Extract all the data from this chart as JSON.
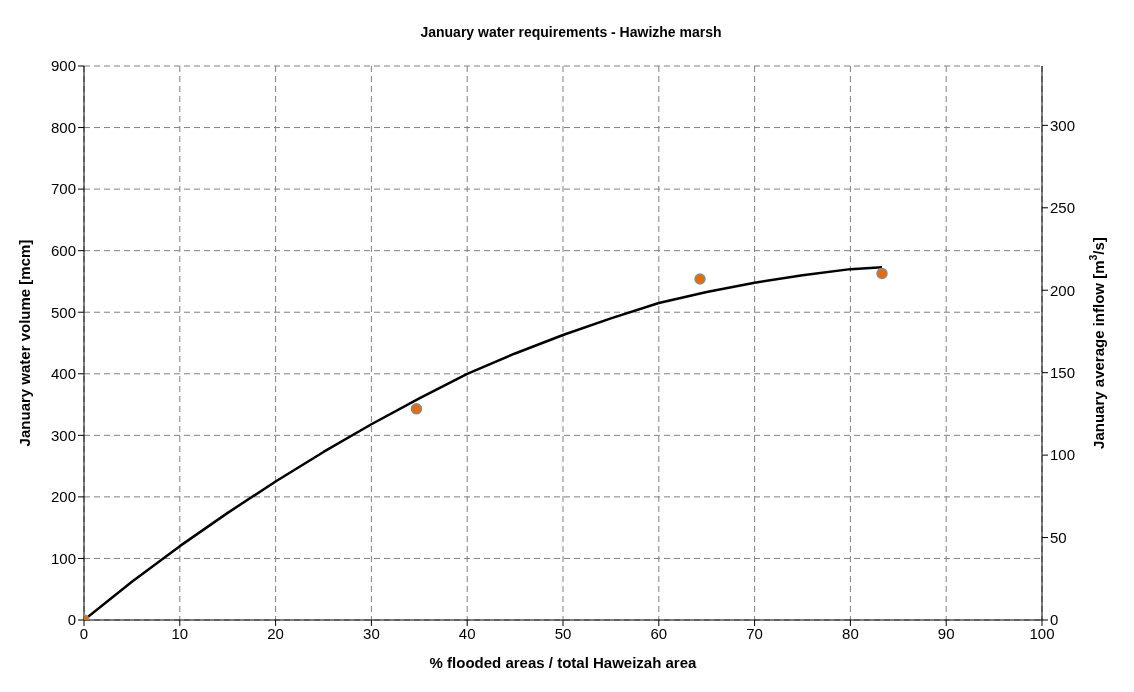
{
  "chart_data": {
    "type": "scatter",
    "title": "January water requirements - Hawizhe marsh",
    "xlabel": "% flooded areas / total Haweizah area",
    "ylabel": "January water volume [mcm]",
    "y2label": "January average inflow [m$^{3}$/s]",
    "series": [
      {
        "color": "#e46c0a",
        "marker": "circle",
        "x": [
          0,
          34.7,
          64.3,
          83.3
        ],
        "values": [
          0,
          343,
          554,
          563
        ]
      },
      {
        "type": "line",
        "color": "#000000",
        "line_style": "solid",
        "x": [
          0,
          5,
          10,
          15,
          20,
          25,
          30,
          35,
          40,
          45,
          50,
          55,
          60,
          65,
          70,
          75,
          80,
          83.3
        ],
        "values": [
          0,
          62,
          120,
          174,
          225,
          273,
          318,
          360,
          400,
          433,
          463,
          490,
          515,
          533,
          548,
          560,
          570,
          573
        ]
      }
    ],
    "xlim": [
      0,
      100
    ],
    "xticks": [
      0,
      10,
      20,
      30,
      40,
      50,
      60,
      70,
      80,
      90,
      100
    ],
    "ylim": [
      0,
      900
    ],
    "yticks": [
      0,
      100,
      200,
      300,
      400,
      500,
      600,
      700,
      800,
      900
    ],
    "y2lim": [
      0,
      336
    ],
    "y2ticks": [
      0,
      50,
      100,
      150,
      200,
      250,
      300
    ],
    "grid": true
  }
}
